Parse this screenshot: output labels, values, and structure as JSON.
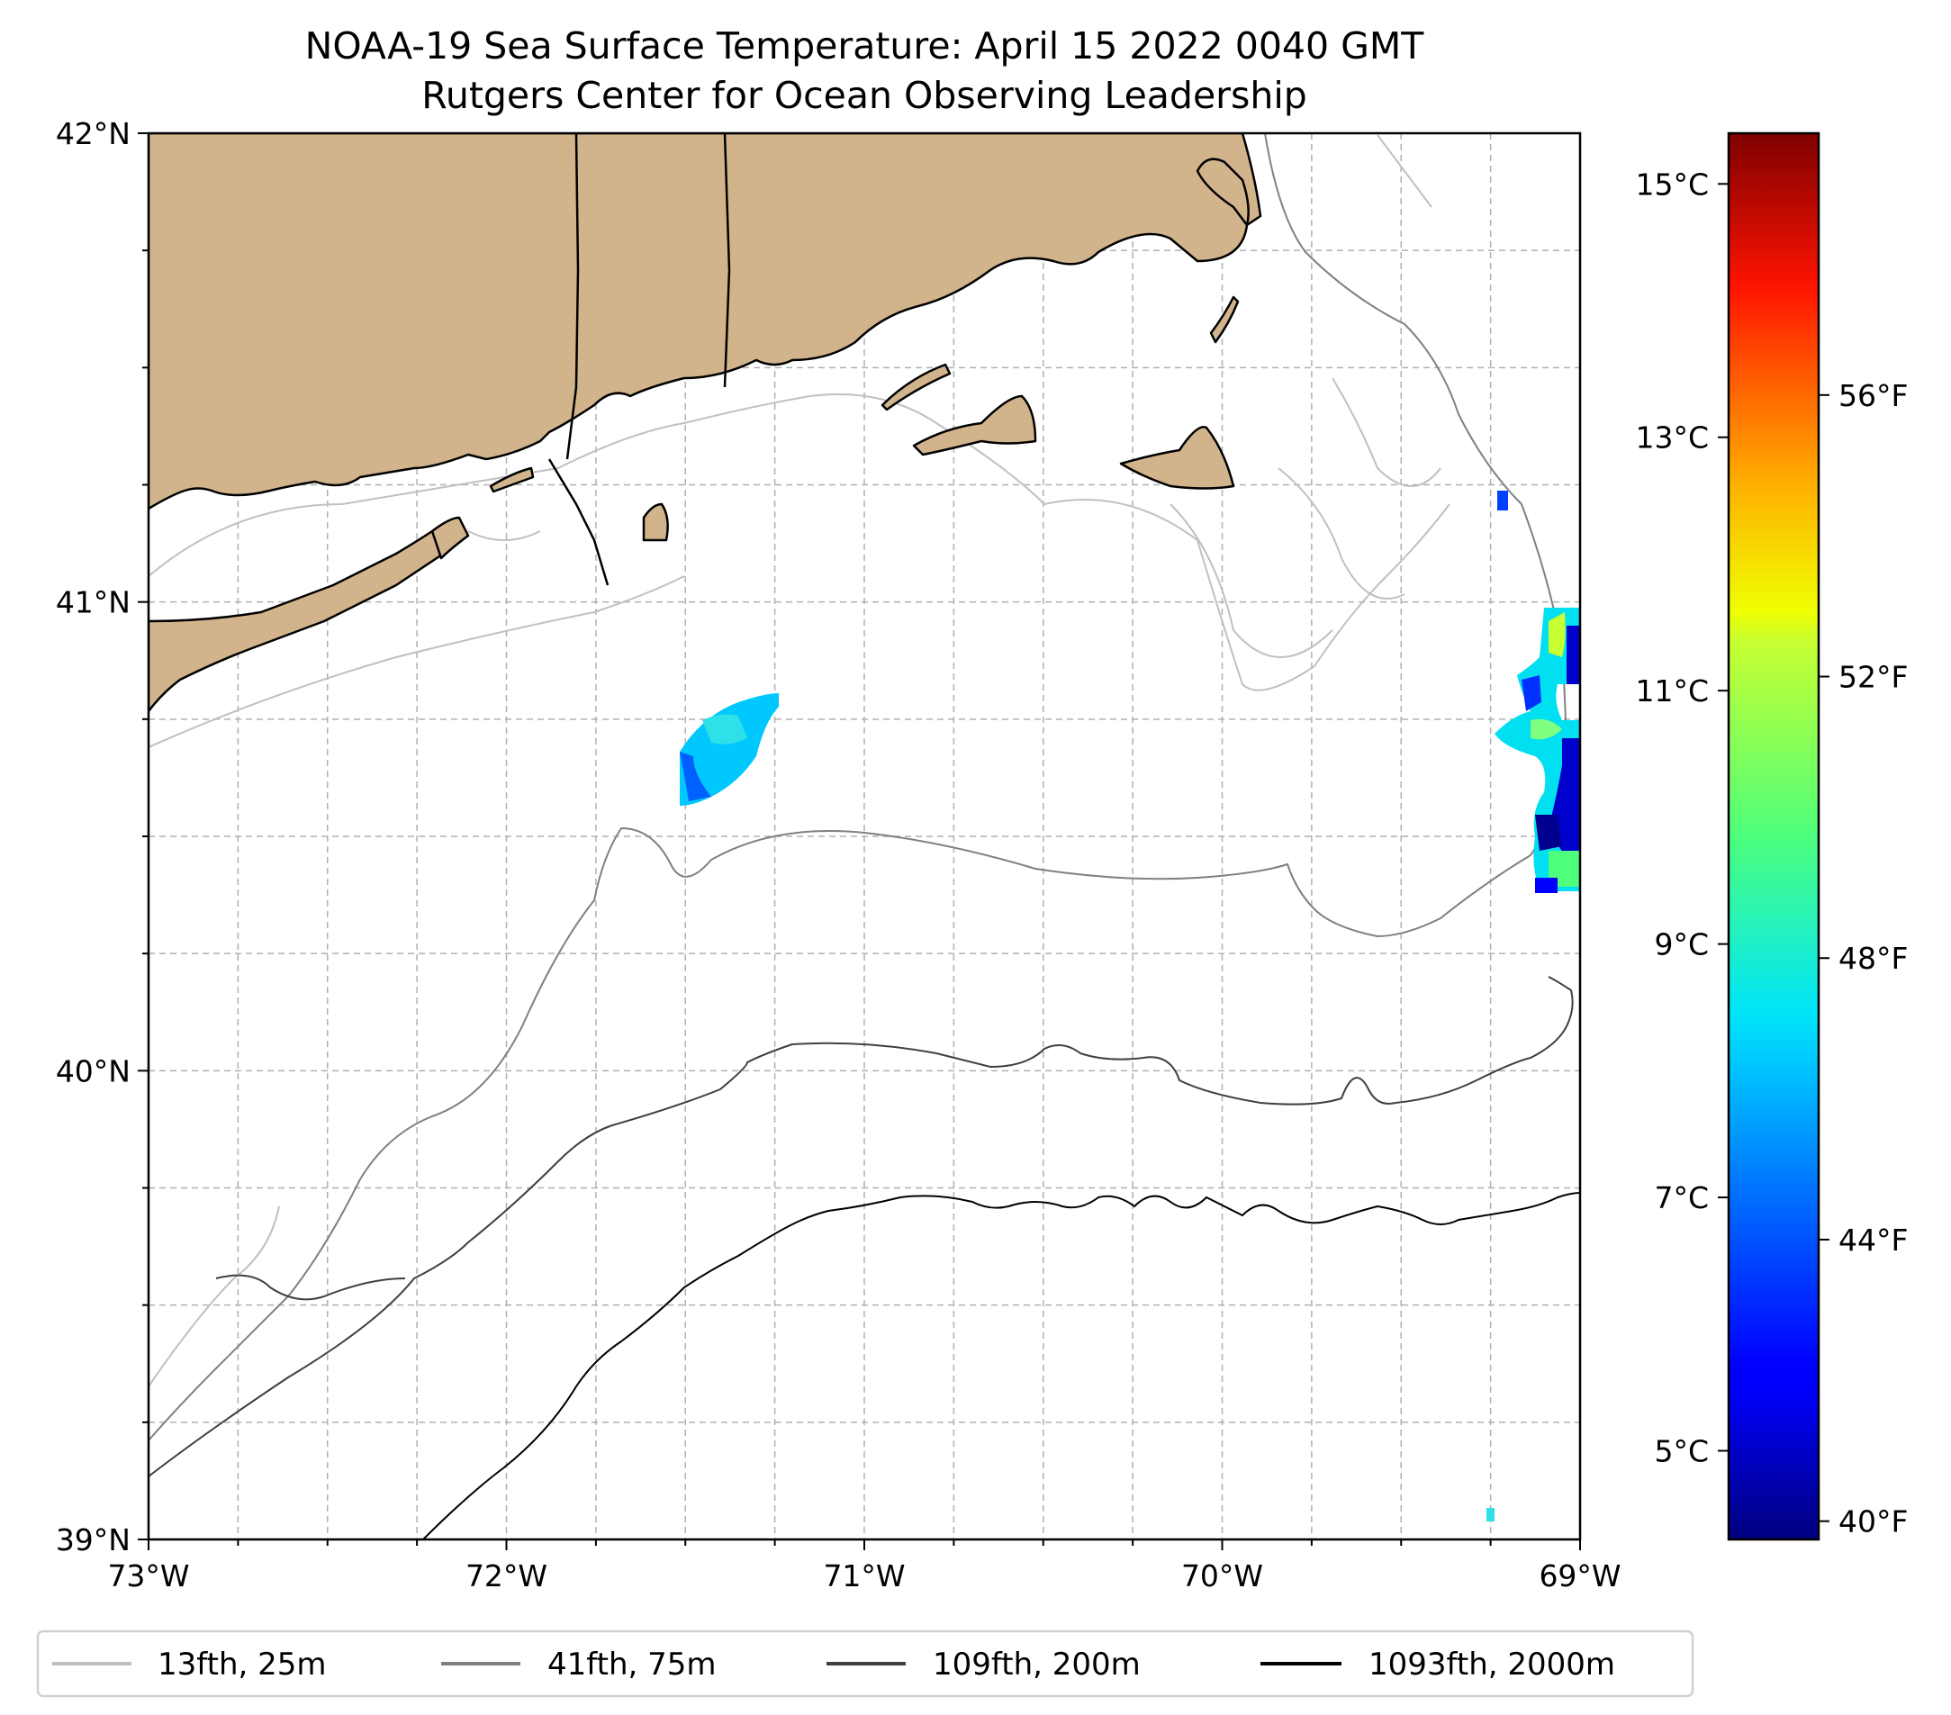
{
  "title": {
    "line1": "NOAA-19 Sea Surface Temperature: April 15 2022 0040 GMT",
    "line2": "Rutgers Center for Ocean Observing Leadership"
  },
  "map": {
    "lon_range": [
      -73,
      -69
    ],
    "lat_range": [
      39,
      42
    ],
    "lat_ticks": [
      {
        "value": 42,
        "label": "42°N"
      },
      {
        "value": 41,
        "label": "41°N"
      },
      {
        "value": 40,
        "label": "40°N"
      },
      {
        "value": 39,
        "label": "39°N"
      }
    ],
    "lon_ticks": [
      {
        "value": -73,
        "label": "73°W"
      },
      {
        "value": -72,
        "label": "72°W"
      },
      {
        "value": -71,
        "label": "71°W"
      },
      {
        "value": -70,
        "label": "70°W"
      },
      {
        "value": -69,
        "label": "69°W"
      }
    ],
    "colors": {
      "land": "#d2b48c",
      "coast": "#000000",
      "grid": "#b0b0b0"
    }
  },
  "colorbar": {
    "range_c": [
      4.3,
      15.4
    ],
    "celsius_ticks": [
      {
        "value": 15,
        "label": "15°C"
      },
      {
        "value": 13,
        "label": "13°C"
      },
      {
        "value": 11,
        "label": "11°C"
      },
      {
        "value": 9,
        "label": "9°C"
      },
      {
        "value": 7,
        "label": "7°C"
      },
      {
        "value": 5,
        "label": "5°C"
      }
    ],
    "fahrenheit_ticks": [
      {
        "value": 56,
        "label": "56°F"
      },
      {
        "value": 52,
        "label": "52°F"
      },
      {
        "value": 48,
        "label": "48°F"
      },
      {
        "value": 44,
        "label": "44°F"
      },
      {
        "value": 40,
        "label": "40°F"
      }
    ],
    "colormap": "jet"
  },
  "legend": {
    "items": [
      {
        "label": "13fth, 25m",
        "color": "#c0c0c0"
      },
      {
        "label": "41fth, 75m",
        "color": "#808080"
      },
      {
        "label": "109fth, 200m",
        "color": "#404040"
      },
      {
        "label": "1093fth, 2000m",
        "color": "#000000"
      }
    ]
  }
}
